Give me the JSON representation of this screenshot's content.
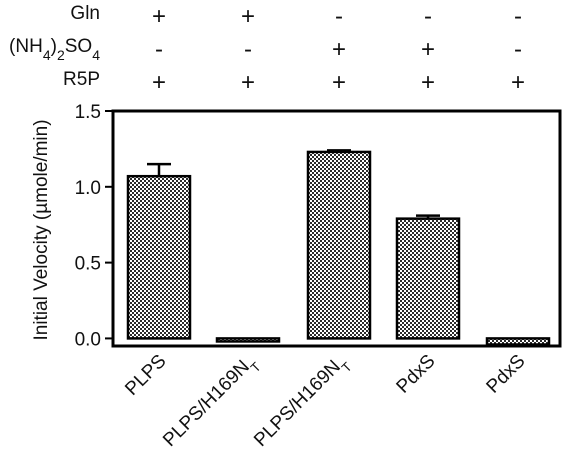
{
  "chart_data": {
    "type": "bar",
    "title": "",
    "xlabel": "",
    "ylabel": "Initial Velocity (µmole/min)",
    "ylim": [
      -0.05,
      1.5
    ],
    "yticks": [
      "0.0",
      "0.5",
      "1.0",
      "1.5"
    ],
    "ytick_values": [
      0.0,
      0.5,
      1.0,
      1.5
    ],
    "categories": [
      {
        "main": "PLPS",
        "sub": ""
      },
      {
        "main": "PLPS/H169N",
        "sub": "T"
      },
      {
        "main": "PLPS/H169N",
        "sub": "T"
      },
      {
        "main": "PdxS",
        "sub": ""
      },
      {
        "main": "PdxS",
        "sub": ""
      }
    ],
    "values": [
      1.07,
      -0.02,
      1.23,
      0.79,
      -0.04
    ],
    "errors": [
      0.08,
      0.0,
      0.01,
      0.02,
      0.0
    ],
    "bar_pattern": "checkered",
    "conditions": [
      {
        "label": "Gln",
        "label_parts": [
          [
            "Gln",
            ""
          ]
        ],
        "signs": [
          "+",
          "+",
          "-",
          "-",
          "-"
        ]
      },
      {
        "label": "(NH4)2SO4",
        "label_parts": [
          [
            "(NH",
            ""
          ],
          [
            "4",
            "sub"
          ],
          [
            ")",
            ""
          ],
          [
            "2",
            "sub"
          ],
          [
            "SO",
            ""
          ],
          [
            "4",
            "sub"
          ]
        ],
        "signs": [
          "-",
          "-",
          "+",
          "+",
          "-"
        ]
      },
      {
        "label": "R5P",
        "label_parts": [
          [
            "R5P",
            ""
          ]
        ],
        "signs": [
          "+",
          "+",
          "+",
          "+",
          "+"
        ]
      }
    ]
  },
  "colors": {
    "axis": "#000000",
    "bar_dark": "#2b2b2b",
    "bar_light": "#ffffff"
  }
}
